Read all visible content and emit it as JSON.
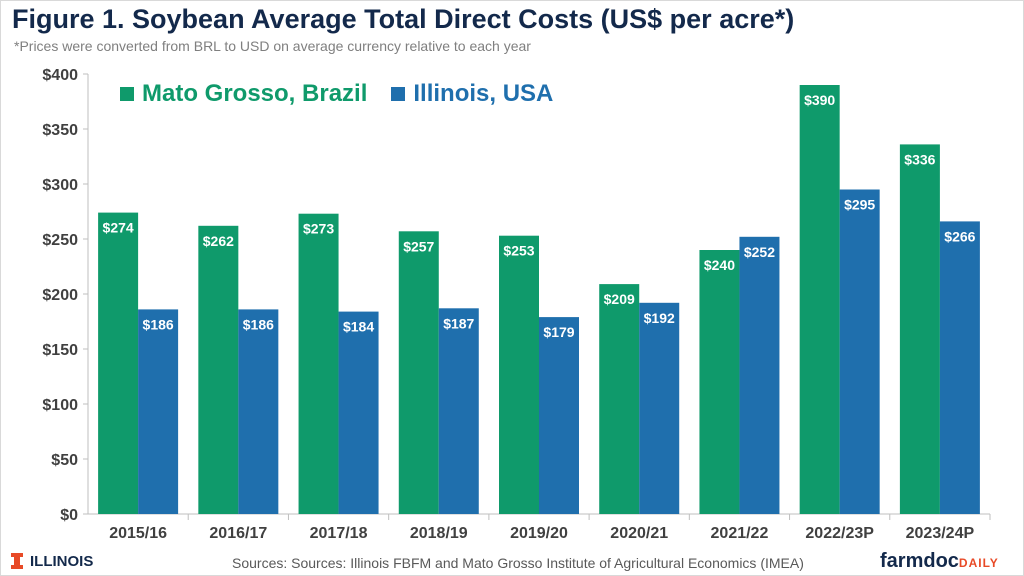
{
  "title": "Figure 1. Soybean Average Total Direct Costs (US$ per acre*)",
  "subtitle": "*Prices were converted from BRL to USD on average currency relative to each year",
  "footer": {
    "logo_text": "ILLINOIS",
    "source": "Sources: Sources: Illinois FBFM and Mato Grosso Institute of Agricultural Economics (IMEA)",
    "brand_main": "farmdoc",
    "brand_small": "DAILY"
  },
  "colors": {
    "brazil": "#0f9a6b",
    "illinois": "#1f6fad",
    "title": "#13294b",
    "illinois_orange": "#e84a27"
  },
  "chart_data": {
    "type": "bar",
    "categories": [
      "2015/16",
      "2016/17",
      "2017/18",
      "2018/19",
      "2019/20",
      "2020/21",
      "2021/22",
      "2022/23P",
      "2023/24P"
    ],
    "series": [
      {
        "name": "Mato Grosso, Brazil",
        "values": [
          274,
          262,
          273,
          257,
          253,
          209,
          240,
          390,
          336
        ]
      },
      {
        "name": "Illinois, USA",
        "values": [
          186,
          186,
          184,
          187,
          179,
          192,
          252,
          295,
          266
        ]
      }
    ],
    "data_label_prefix": "$",
    "ylim": [
      0,
      400
    ],
    "yticks": [
      0,
      50,
      100,
      150,
      200,
      250,
      300,
      350,
      400
    ],
    "ytick_labels": [
      "$0",
      "$50",
      "$100",
      "$150",
      "$200",
      "$250",
      "$300",
      "$350",
      "$400"
    ],
    "grid": false,
    "legend_position": "top-left"
  }
}
